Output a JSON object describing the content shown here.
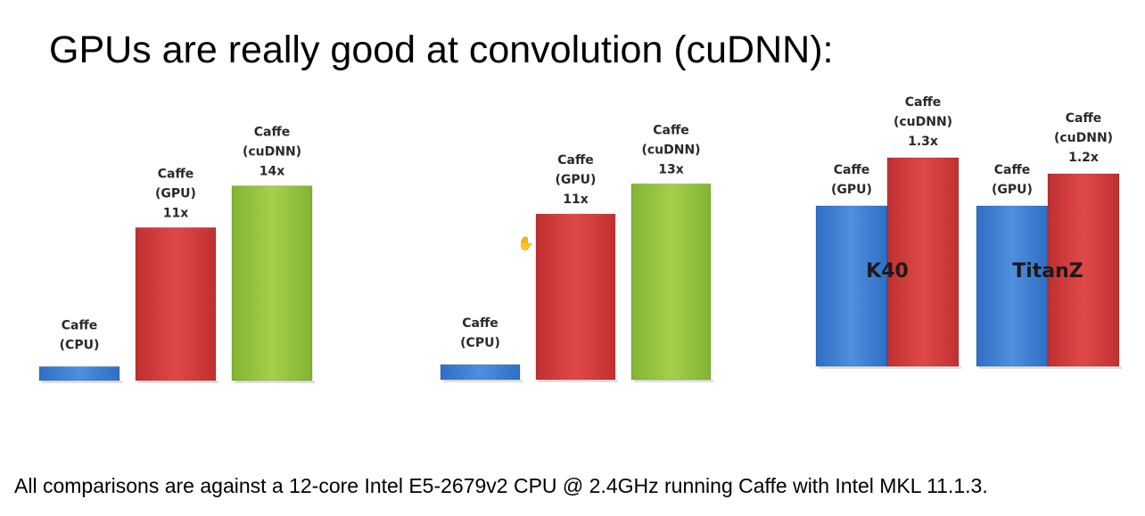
{
  "slide": {
    "title": "GPUs are really good at convolution (cuDNN):",
    "footnote": "All comparisons are against a 12-core Intel E5-2679v2 CPU @ 2.4GHz running Caffe with Intel MKL 11.1.3."
  },
  "colors": {
    "cpu": "#3f7fd0",
    "gpu": "#d64040",
    "cudnn": "#94c63c"
  },
  "chart_data": [
    {
      "type": "bar",
      "title": "",
      "categories": [
        "Caffe (CPU)",
        "Caffe (GPU)",
        "Caffe (cuDNN)"
      ],
      "values": [
        1,
        11,
        14
      ],
      "bar_labels": [
        [
          "Caffe",
          "(CPU)"
        ],
        [
          "Caffe",
          "(GPU)",
          "11x"
        ],
        [
          "Caffe",
          "(cuDNN)",
          "14x"
        ]
      ],
      "colors": [
        "cpu",
        "gpu",
        "cudnn"
      ]
    },
    {
      "type": "bar",
      "title": "",
      "categories": [
        "Caffe (CPU)",
        "Caffe (GPU)",
        "Caffe (cuDNN)"
      ],
      "values": [
        1,
        11,
        13
      ],
      "bar_labels": [
        [
          "Caffe",
          "(CPU)"
        ],
        [
          "Caffe",
          "(GPU)",
          "11x"
        ],
        [
          "Caffe",
          "(cuDNN)",
          "13x"
        ]
      ],
      "colors": [
        "cpu",
        "gpu",
        "cudnn"
      ]
    },
    {
      "type": "bar",
      "title": "",
      "groups": [
        "K40",
        "TitanZ"
      ],
      "series": [
        {
          "name": "Caffe (GPU)",
          "values": [
            1.0,
            1.0
          ],
          "labels": [
            [
              "Caffe",
              "(GPU)"
            ],
            [
              "Caffe",
              "(GPU)"
            ]
          ],
          "color": "gpu_blue"
        },
        {
          "name": "Caffe (cuDNN)",
          "values": [
            1.3,
            1.2
          ],
          "labels": [
            [
              "Caffe",
              "(cuDNN)",
              "1.3x"
            ],
            [
              "Caffe",
              "(cuDNN)",
              "1.2x"
            ]
          ],
          "color": "gpu_red"
        }
      ]
    }
  ]
}
